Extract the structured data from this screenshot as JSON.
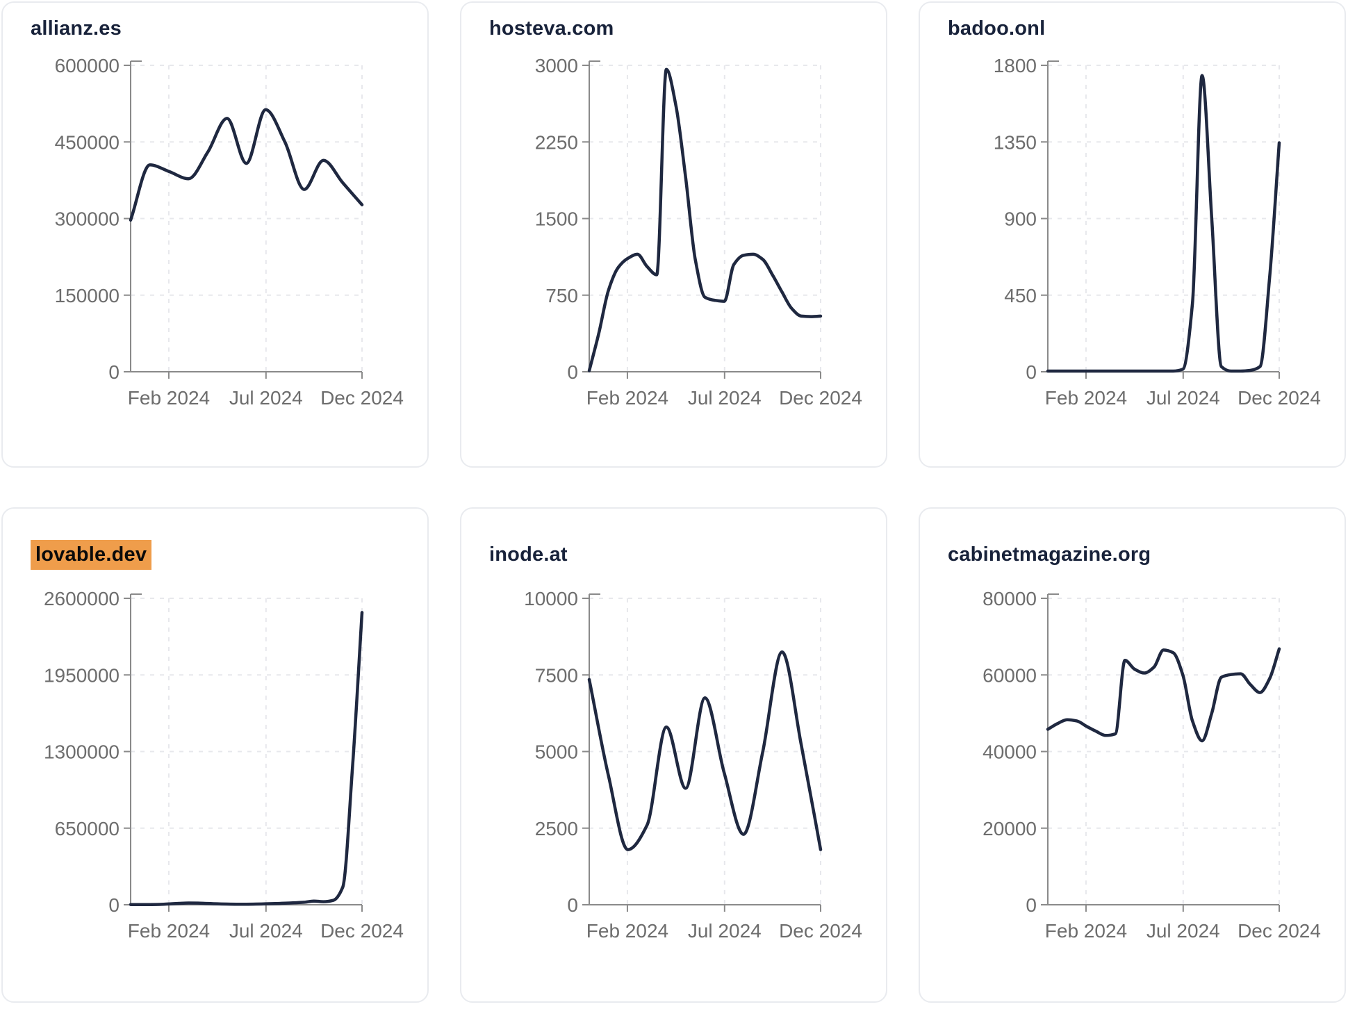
{
  "style": {
    "page_background": "#ffffff",
    "card_background": "#ffffff",
    "card_border_color": "#e9ebef",
    "title_color": "#18223a",
    "highlight_background": "#ef9d4b",
    "highlight_text_color": "#0a0a0a",
    "line_color": "#1f2840",
    "axis_color": "#8a8a8a",
    "tick_label_color": "#6d6d6d",
    "gridline_color": "#e7e8ec"
  },
  "chart_data": [
    {
      "type": "line",
      "domain": "allianz.es",
      "highlighted": false,
      "title": "allianz.es",
      "xlabel": "",
      "ylabel": "",
      "x_ticks": [
        {
          "label": "Feb 2024",
          "f": 0.165
        },
        {
          "label": "Jul 2024",
          "f": 0.585
        },
        {
          "label": "Dec 2024",
          "f": 1.0
        }
      ],
      "y_ticks": [
        0,
        150000,
        300000,
        450000,
        600000
      ],
      "ylim": [
        0,
        600000
      ],
      "grid": true,
      "legend": false,
      "values": [
        297000,
        405000,
        392000,
        378000,
        430000,
        496000,
        408000,
        513000,
        450000,
        357000,
        414000,
        370000,
        327000
      ]
    },
    {
      "type": "line",
      "domain": "hosteva.com",
      "highlighted": false,
      "title": "hosteva.com",
      "xlabel": "",
      "ylabel": "",
      "x_ticks": [
        {
          "label": "Feb 2024",
          "f": 0.165
        },
        {
          "label": "Jul 2024",
          "f": 0.585
        },
        {
          "label": "Dec 2024",
          "f": 1.0
        }
      ],
      "y_ticks": [
        0,
        750,
        1500,
        2250,
        3000
      ],
      "ylim": [
        0,
        3000
      ],
      "grid": true,
      "legend": false,
      "values": [
        10,
        380,
        800,
        1020,
        1110,
        1150,
        1030,
        950,
        2960,
        2600,
        1900,
        1100,
        730,
        700,
        690,
        1050,
        1140,
        1150,
        1100,
        950,
        780,
        620,
        545,
        540,
        545
      ]
    },
    {
      "type": "line",
      "domain": "badoo.onl",
      "highlighted": false,
      "title": "badoo.onl",
      "xlabel": "",
      "ylabel": "",
      "x_ticks": [
        {
          "label": "Feb 2024",
          "f": 0.165
        },
        {
          "label": "Jul 2024",
          "f": 0.585
        },
        {
          "label": "Dec 2024",
          "f": 1.0
        }
      ],
      "y_ticks": [
        0,
        450,
        900,
        1350,
        1800
      ],
      "ylim": [
        0,
        1800
      ],
      "grid": true,
      "legend": false,
      "values": [
        4,
        4,
        4,
        4,
        4,
        4,
        4,
        4,
        4,
        4,
        4,
        4,
        4,
        4,
        15,
        400,
        1740,
        900,
        30,
        4,
        4,
        8,
        30,
        550,
        1345
      ]
    },
    {
      "type": "line",
      "domain": "lovable.dev",
      "highlighted": true,
      "title": "lovable.dev",
      "xlabel": "",
      "ylabel": "",
      "x_ticks": [
        {
          "label": "Feb 2024",
          "f": 0.165
        },
        {
          "label": "Jul 2024",
          "f": 0.585
        },
        {
          "label": "Dec 2024",
          "f": 1.0
        }
      ],
      "y_ticks": [
        0,
        650000,
        1300000,
        1950000,
        2600000
      ],
      "ylim": [
        0,
        2600000
      ],
      "grid": true,
      "legend": false,
      "values": [
        2000,
        2000,
        2000,
        3000,
        7000,
        12000,
        15000,
        14000,
        11000,
        8000,
        6000,
        5000,
        5000,
        6000,
        8000,
        10000,
        13000,
        17000,
        21000,
        31000,
        26000,
        37000,
        150000,
        1150000,
        2480000
      ]
    },
    {
      "type": "line",
      "domain": "inode.at",
      "highlighted": false,
      "title": "inode.at",
      "xlabel": "",
      "ylabel": "",
      "x_ticks": [
        {
          "label": "Feb 2024",
          "f": 0.165
        },
        {
          "label": "Jul 2024",
          "f": 0.585
        },
        {
          "label": "Dec 2024",
          "f": 1.0
        }
      ],
      "y_ticks": [
        0,
        2500,
        5000,
        7500,
        10000
      ],
      "ylim": [
        0,
        10000
      ],
      "grid": true,
      "legend": false,
      "values": [
        7350,
        4200,
        1800,
        2600,
        5800,
        3800,
        6750,
        4300,
        2300,
        5000,
        8250,
        5200,
        1800
      ]
    },
    {
      "type": "line",
      "domain": "cabinetmagazine.org",
      "highlighted": false,
      "title": "cabinetmagazine.org",
      "xlabel": "",
      "ylabel": "",
      "x_ticks": [
        {
          "label": "Feb 2024",
          "f": 0.165
        },
        {
          "label": "Jul 2024",
          "f": 0.585
        },
        {
          "label": "Dec 2024",
          "f": 1.0
        }
      ],
      "y_ticks": [
        0,
        20000,
        40000,
        60000,
        80000
      ],
      "ylim": [
        0,
        80000
      ],
      "grid": true,
      "legend": false,
      "values": [
        45800,
        47300,
        48300,
        48000,
        46600,
        45300,
        44200,
        44600,
        63800,
        61500,
        60500,
        62000,
        66500,
        65800,
        60000,
        48000,
        42800,
        50000,
        59400,
        60100,
        60300,
        57500,
        55400,
        59000,
        66800
      ]
    }
  ]
}
